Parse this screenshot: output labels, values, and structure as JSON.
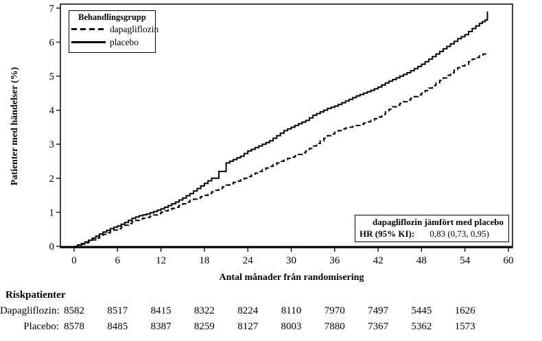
{
  "figure": {
    "y_axis_label": "Patienter med händelser (%)",
    "x_axis_label": "Antal månader från randomisering"
  },
  "legend": {
    "title": "Behandlingsgrupp",
    "entries": [
      {
        "label": "dapagliflozin",
        "line_style": "dashed"
      },
      {
        "label": "placebo",
        "line_style": "solid"
      }
    ]
  },
  "annotation": {
    "comparison_title": "dapagliflozin jämfört med placebo",
    "hr_label": "HR (95% KI):",
    "hr_value": "0,83 (0,73, 0,95)"
  },
  "risk_table": {
    "heading": "Riskpatienter",
    "months": [
      0,
      6,
      12,
      18,
      24,
      30,
      36,
      42,
      48,
      54
    ],
    "rows": [
      {
        "label": "Dapagliflozin:",
        "values": [
          "8582",
          "8517",
          "8415",
          "8322",
          "8224",
          "8110",
          "7970",
          "7497",
          "5445",
          "1626"
        ]
      },
      {
        "label": "Placebo:",
        "values": [
          "8578",
          "8485",
          "8387",
          "8259",
          "8127",
          "8003",
          "7880",
          "7367",
          "5362",
          "1573"
        ]
      }
    ]
  },
  "chart_data": {
    "type": "line",
    "title": "",
    "xlabel": "Antal månader från randomisering",
    "ylabel": "Patienter med händelser (%)",
    "xlim": [
      0,
      60
    ],
    "ylim": [
      0,
      7
    ],
    "xticks": [
      0,
      6,
      12,
      18,
      24,
      30,
      36,
      42,
      48,
      54,
      60
    ],
    "yticks": [
      0,
      1,
      2,
      3,
      4,
      5,
      6,
      7
    ],
    "grid": false,
    "legend_position": "top-left",
    "line_color": "#000000",
    "curve_style": "step",
    "series": [
      {
        "name": "dapagliflozin",
        "style": "dashed",
        "points": [
          [
            0,
            0
          ],
          [
            1,
            0.06
          ],
          [
            2,
            0.14
          ],
          [
            3,
            0.24
          ],
          [
            4,
            0.35
          ],
          [
            5,
            0.44
          ],
          [
            6,
            0.52
          ],
          [
            7,
            0.62
          ],
          [
            8,
            0.72
          ],
          [
            9,
            0.8
          ],
          [
            10,
            0.85
          ],
          [
            11,
            0.92
          ],
          [
            12,
            1.0
          ],
          [
            13,
            1.08
          ],
          [
            14,
            1.15
          ],
          [
            15,
            1.25
          ],
          [
            16,
            1.35
          ],
          [
            17,
            1.42
          ],
          [
            18,
            1.5
          ],
          [
            19,
            1.6
          ],
          [
            20,
            1.7
          ],
          [
            21,
            1.8
          ],
          [
            22,
            1.88
          ],
          [
            23,
            1.95
          ],
          [
            24,
            2.05
          ],
          [
            25,
            2.15
          ],
          [
            26,
            2.25
          ],
          [
            27,
            2.35
          ],
          [
            28,
            2.45
          ],
          [
            29,
            2.55
          ],
          [
            30,
            2.62
          ],
          [
            31,
            2.7
          ],
          [
            32,
            2.8
          ],
          [
            33,
            2.95
          ],
          [
            34,
            3.1
          ],
          [
            35,
            3.25
          ],
          [
            36,
            3.35
          ],
          [
            37,
            3.45
          ],
          [
            38,
            3.5
          ],
          [
            39,
            3.55
          ],
          [
            40,
            3.62
          ],
          [
            41,
            3.7
          ],
          [
            42,
            3.8
          ],
          [
            43,
            3.95
          ],
          [
            44,
            4.1
          ],
          [
            45,
            4.2
          ],
          [
            46,
            4.3
          ],
          [
            47,
            4.4
          ],
          [
            48,
            4.5
          ],
          [
            49,
            4.65
          ],
          [
            50,
            4.8
          ],
          [
            51,
            4.95
          ],
          [
            52,
            5.1
          ],
          [
            53,
            5.25
          ],
          [
            54,
            5.35
          ],
          [
            55,
            5.5
          ],
          [
            56,
            5.6
          ],
          [
            57,
            5.7
          ]
        ]
      },
      {
        "name": "placebo",
        "style": "solid",
        "points": [
          [
            0,
            0
          ],
          [
            1,
            0.08
          ],
          [
            2,
            0.18
          ],
          [
            3,
            0.3
          ],
          [
            4,
            0.42
          ],
          [
            5,
            0.52
          ],
          [
            6,
            0.6
          ],
          [
            7,
            0.7
          ],
          [
            8,
            0.82
          ],
          [
            9,
            0.9
          ],
          [
            10,
            0.95
          ],
          [
            11,
            1.02
          ],
          [
            12,
            1.1
          ],
          [
            13,
            1.2
          ],
          [
            14,
            1.3
          ],
          [
            15,
            1.42
          ],
          [
            16,
            1.55
          ],
          [
            17,
            1.7
          ],
          [
            18,
            1.85
          ],
          [
            19,
            2.0
          ],
          [
            20,
            2.2
          ],
          [
            21,
            2.45
          ],
          [
            22,
            2.55
          ],
          [
            23,
            2.65
          ],
          [
            24,
            2.8
          ],
          [
            25,
            2.9
          ],
          [
            26,
            3.0
          ],
          [
            27,
            3.1
          ],
          [
            28,
            3.25
          ],
          [
            29,
            3.4
          ],
          [
            30,
            3.5
          ],
          [
            31,
            3.6
          ],
          [
            32,
            3.7
          ],
          [
            33,
            3.85
          ],
          [
            34,
            3.95
          ],
          [
            35,
            4.05
          ],
          [
            36,
            4.12
          ],
          [
            37,
            4.22
          ],
          [
            38,
            4.32
          ],
          [
            39,
            4.42
          ],
          [
            40,
            4.5
          ],
          [
            41,
            4.58
          ],
          [
            42,
            4.68
          ],
          [
            43,
            4.8
          ],
          [
            44,
            4.9
          ],
          [
            45,
            5.0
          ],
          [
            46,
            5.1
          ],
          [
            47,
            5.22
          ],
          [
            48,
            5.35
          ],
          [
            49,
            5.5
          ],
          [
            50,
            5.65
          ],
          [
            51,
            5.8
          ],
          [
            52,
            5.95
          ],
          [
            53,
            6.1
          ],
          [
            54,
            6.22
          ],
          [
            55,
            6.4
          ],
          [
            56,
            6.55
          ],
          [
            56.8,
            6.65
          ],
          [
            57.1,
            6.9
          ]
        ]
      }
    ]
  }
}
